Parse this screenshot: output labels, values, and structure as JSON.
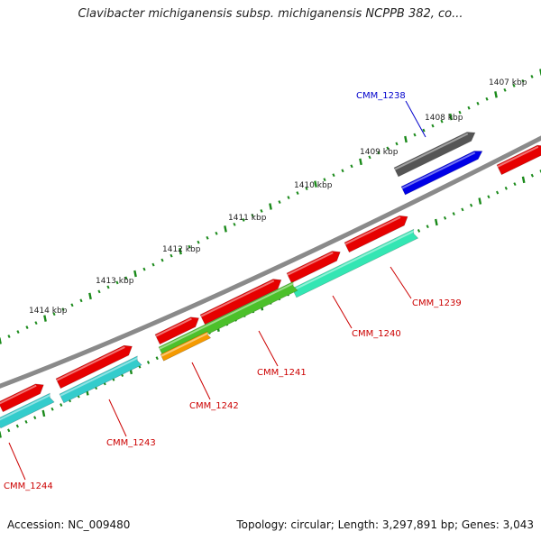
{
  "title": "Clavibacter michiganensis subsp. michiganensis NCPPB 382, co...",
  "footer": {
    "accession": "Accession: NC_009480",
    "stats": "Topology: circular; Length: 3,297,891 bp; Genes: 3,043"
  },
  "scale_labels": [
    "1407 kbp",
    "1408 kbp",
    "1409 kbp",
    "1410 kbp",
    "1411 kbp",
    "1412 kbp",
    "1413 kbp",
    "1414 kbp"
  ],
  "gene_labels": [
    {
      "text": "CMM_1238",
      "color": "#0000cc"
    },
    {
      "text": "CMM_1239",
      "color": "#cc0000"
    },
    {
      "text": "CMM_1240",
      "color": "#cc0000"
    },
    {
      "text": "CMM_1241",
      "color": "#cc0000"
    },
    {
      "text": "CMM_1242",
      "color": "#cc0000"
    },
    {
      "text": "CMM_1243",
      "color": "#cc0000"
    },
    {
      "text": "CMM_1244",
      "color": "#cc0000"
    }
  ],
  "colors": {
    "backbone": "#8a8a8a",
    "cds": "#e60000",
    "gene_dark": "#555555",
    "gene_blue": "#0000e6",
    "feature_teal": "#33e6b3",
    "feature_cyan": "#33cccc",
    "feature_green": "#4cc02a",
    "feature_orange": "#f59a00",
    "ticks": "#1a8a1a"
  }
}
